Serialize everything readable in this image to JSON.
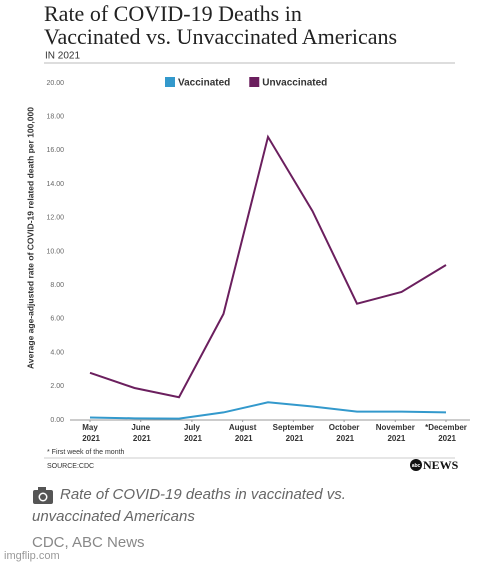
{
  "chart_data": {
    "type": "line",
    "title": [
      "Rate of COVID-19 Deaths in",
      "Vaccinated vs. Unvaccinated Americans"
    ],
    "subtitle": "IN 2021",
    "y_label": "Average age-adjusted rate of COVID-19 related death per 100,000",
    "x": [
      0,
      1,
      2,
      3,
      4,
      5,
      6,
      7,
      8
    ],
    "xlim": [
      0,
      8
    ],
    "xticks": [
      {
        "value": 0,
        "label": "May 2021"
      },
      {
        "value": 1.14,
        "label": "June 2021"
      },
      {
        "value": 2.29,
        "label": "July 2021"
      },
      {
        "value": 3.43,
        "label": "August 2021"
      },
      {
        "value": 4.57,
        "label": "September 2021"
      },
      {
        "value": 5.71,
        "label": "October 2021"
      },
      {
        "value": 6.86,
        "label": "November 2021"
      },
      {
        "value": 8,
        "label": "*December 2021"
      }
    ],
    "series": [
      {
        "name": "Vaccinated",
        "color": "#3399cc",
        "values": [
          0.15,
          0.1,
          0.08,
          0.45,
          1.05,
          0.8,
          0.5,
          0.5,
          0.45
        ]
      },
      {
        "name": "Unvaccinated",
        "color": "#6b1f5e",
        "values": [
          2.8,
          1.9,
          1.35,
          6.3,
          16.8,
          12.4,
          6.9,
          7.6,
          9.2
        ]
      }
    ],
    "ylim": [
      0,
      20
    ],
    "yticks": [
      {
        "value": 0,
        "label": "0.00"
      },
      {
        "value": 2,
        "label": "2.00"
      },
      {
        "value": 4,
        "label": "4.00"
      },
      {
        "value": 6,
        "label": "6.00"
      },
      {
        "value": 8,
        "label": "8.00"
      },
      {
        "value": 10,
        "label": "10.00"
      },
      {
        "value": 12,
        "label": "12.00"
      },
      {
        "value": 14,
        "label": "14.00"
      },
      {
        "value": 16,
        "label": "16.00"
      },
      {
        "value": 18,
        "label": "18.00"
      },
      {
        "value": 20,
        "label": "20.00"
      }
    ],
    "grid": false,
    "legend": "top",
    "footnote": "* First week of the month",
    "source": "SOURCE:CDC",
    "logo": [
      "abc",
      "NEWS"
    ]
  },
  "caption": "Rate of COVID-19 deaths in vaccinated vs. unvaccinated Americans",
  "credit": "CDC, ABC News",
  "watermark": "imgflip.com"
}
